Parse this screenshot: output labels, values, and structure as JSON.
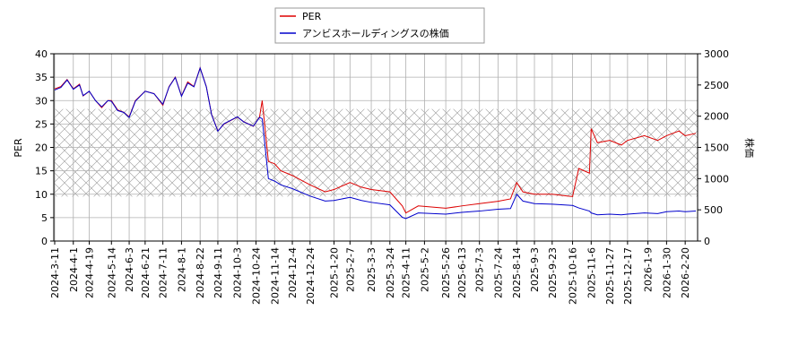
{
  "chart_data": {
    "type": "line",
    "y_label": "PER",
    "y2_label": "株価",
    "legend": "top",
    "grid": true,
    "shaded_range": [
      9.5,
      28.2
    ],
    "xlim": [
      "2024-3-10",
      "2026-3-6"
    ],
    "xticks": [
      "2024-3-11",
      "2024-4-1",
      "2024-4-19",
      "2024-5-14",
      "2024-6-3",
      "2024-6-21",
      "2024-7-11",
      "2024-8-1",
      "2024-8-22",
      "2024-9-11",
      "2024-10-3",
      "2024-10-24",
      "2024-11-14",
      "2024-12-4",
      "2024-12-24",
      "2025-1-20",
      "2025-2-7",
      "2025-3-3",
      "2025-3-24",
      "2025-4-11",
      "2025-5-2",
      "2025-5-26",
      "2025-6-13",
      "2025-7-3",
      "2025-7-24",
      "2025-8-14",
      "2025-9-3",
      "2025-9-23",
      "2025-10-16",
      "2025-11-6",
      "2025-11-27",
      "2025-12-17",
      "2026-1-9",
      "2026-1-30",
      "2026-2-20"
    ],
    "ylim": [
      0,
      40
    ],
    "yticks": [
      0,
      5,
      10,
      15,
      20,
      25,
      30,
      35,
      40
    ],
    "y2lim": [
      0,
      3000
    ],
    "y2ticks": [
      0,
      500,
      1000,
      1500,
      2000,
      2500,
      3000
    ],
    "x": [
      "2024-3-11",
      "2024-3-18",
      "2024-3-25",
      "2024-4-1",
      "2024-4-8",
      "2024-4-12",
      "2024-4-19",
      "2024-4-26",
      "2024-5-3",
      "2024-5-10",
      "2024-5-14",
      "2024-5-21",
      "2024-5-28",
      "2024-6-3",
      "2024-6-10",
      "2024-6-21",
      "2024-7-1",
      "2024-7-11",
      "2024-7-18",
      "2024-7-25",
      "2024-8-1",
      "2024-8-8",
      "2024-8-15",
      "2024-8-22",
      "2024-8-29",
      "2024-9-4",
      "2024-9-11",
      "2024-9-18",
      "2024-10-3",
      "2024-10-10",
      "2024-10-21",
      "2024-10-28",
      "2024-10-31",
      "2024-11-7",
      "2024-11-14",
      "2024-11-21",
      "2024-12-4",
      "2024-12-24",
      "2025-1-10",
      "2025-1-20",
      "2025-2-7",
      "2025-2-20",
      "2025-3-3",
      "2025-3-24",
      "2025-4-7",
      "2025-4-11",
      "2025-4-25",
      "2025-5-26",
      "2025-6-13",
      "2025-7-3",
      "2025-7-24",
      "2025-8-7",
      "2025-8-14",
      "2025-8-21",
      "2025-9-3",
      "2025-9-23",
      "2025-10-16",
      "2025-10-23",
      "2025-11-4",
      "2025-11-6",
      "2025-11-13",
      "2025-11-27",
      "2025-12-10",
      "2025-12-17",
      "2026-1-5",
      "2026-1-20",
      "2026-1-30",
      "2026-2-13",
      "2026-2-20",
      "2026-3-4"
    ],
    "series": [
      {
        "name": "PER",
        "color": "#dd0000",
        "axis": "y",
        "values": [
          32.5,
          33,
          34.5,
          32.5,
          33.5,
          31,
          32,
          30,
          28.5,
          30,
          30,
          28,
          27.5,
          26.5,
          30,
          32,
          31.5,
          29,
          33,
          35,
          31,
          34,
          33,
          37,
          33,
          27,
          23.5,
          25,
          26.5,
          25.5,
          24.5,
          26.5,
          30,
          17,
          16.5,
          15,
          14,
          12,
          10.5,
          11,
          12.5,
          11.5,
          11,
          10.5,
          7.5,
          6,
          7.5,
          7,
          7.5,
          8,
          8.5,
          9,
          12.5,
          10.5,
          10,
          10,
          9.5,
          15.5,
          14.5,
          24,
          21,
          21.5,
          20.5,
          21.5,
          22.5,
          21.5,
          22.5,
          23.5,
          22.5,
          23
        ]
      },
      {
        "name": "アンビスホールディングスの株価",
        "color": "#0000cc",
        "axis": "y2",
        "values": [
          2420,
          2460,
          2580,
          2430,
          2500,
          2330,
          2400,
          2250,
          2150,
          2250,
          2240,
          2090,
          2060,
          1980,
          2240,
          2400,
          2360,
          2190,
          2470,
          2620,
          2320,
          2530,
          2470,
          2770,
          2470,
          2020,
          1760,
          1880,
          1990,
          1910,
          1840,
          1980,
          1960,
          1000,
          960,
          900,
          840,
          720,
          640,
          650,
          700,
          650,
          620,
          580,
          380,
          360,
          450,
          430,
          460,
          480,
          510,
          520,
          750,
          640,
          600,
          590,
          570,
          530,
          480,
          450,
          420,
          430,
          420,
          430,
          450,
          440,
          470,
          480,
          470,
          480
        ]
      }
    ]
  }
}
